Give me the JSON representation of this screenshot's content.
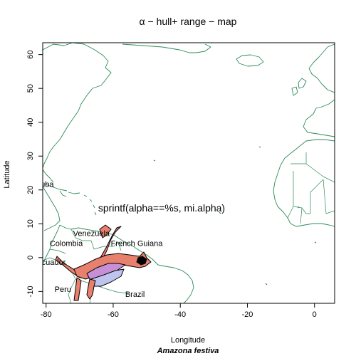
{
  "figure": {
    "title": "α − hull+ range − map",
    "xlabel": "Longitude",
    "ylabel": "Latitude",
    "caption": "Amazona festiva",
    "annotation": "sprintf(alpha==%s, mi.alpha)"
  },
  "chart_data": {
    "type": "map",
    "title": "α − hull+ range − map",
    "xlabel": "Longitude",
    "ylabel": "Latitude",
    "xlim": [
      -81,
      6
    ],
    "ylim": [
      -13.5,
      63.5
    ],
    "xticks": [
      -80,
      -60,
      -40,
      -20,
      0
    ],
    "yticks": [
      -10,
      0,
      10,
      20,
      30,
      40,
      50,
      60
    ],
    "grid": false,
    "country_labels": [
      {
        "name": "Cuba",
        "lon": -80.5,
        "lat": 21.5
      },
      {
        "name": "Venezuela",
        "lon": -66.5,
        "lat": 7.0
      },
      {
        "name": "Colombia",
        "lon": -74.0,
        "lat": 4.0
      },
      {
        "name": "French Guiana",
        "lon": -53.0,
        "lat": 4.0
      },
      {
        "name": "Ecuador",
        "lon": -78.5,
        "lat": -1.5
      },
      {
        "name": "Peru",
        "lon": -75.0,
        "lat": -9.5
      },
      {
        "name": "Brazil",
        "lon": -53.5,
        "lat": -11.0
      }
    ],
    "colors": {
      "coastline": "#2e8b57",
      "range_fill": "#e8806e",
      "range_inner": "#c78fd6",
      "range_light": "#bfc4ee",
      "range_outline": "#000000"
    }
  }
}
